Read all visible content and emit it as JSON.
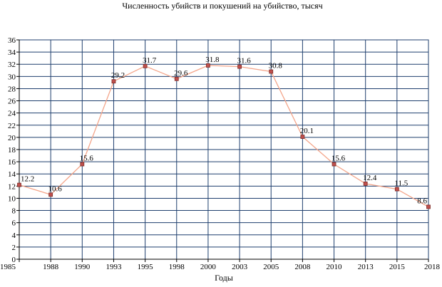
{
  "chart_data": {
    "type": "line",
    "title": "Численность убийств и покушений на убийство, тысяч",
    "xlabel": "Годы",
    "ylabel": "",
    "categories": [
      "1985",
      "1988",
      "1990",
      "1993",
      "1995",
      "1998",
      "2000",
      "2003",
      "2005",
      "2008",
      "2010",
      "2013",
      "2015",
      "2018"
    ],
    "values": [
      12.2,
      10.6,
      15.6,
      29.2,
      31.7,
      29.6,
      31.8,
      31.6,
      30.8,
      20.1,
      15.6,
      12.4,
      11.5,
      8.6
    ],
    "data_labels": [
      "12.2",
      "10.6",
      "15.6",
      "29.2",
      "31.7",
      "29.6",
      "31.8",
      "31.6",
      "30.8",
      "20.1",
      "15.6",
      "12.4",
      "11.5",
      "8.6"
    ],
    "ylim": [
      0,
      36
    ],
    "y_ticks": [
      "0",
      "2",
      "4",
      "6",
      "8",
      "10",
      "12",
      "14",
      "16",
      "18",
      "20",
      "22",
      "24",
      "26",
      "28",
      "30",
      "32",
      "34",
      "36"
    ],
    "grid": true,
    "legend": "none",
    "colors": {
      "line": "#f4a58a",
      "marker_fill": "#c0504d",
      "marker_stroke": "#7f2c27",
      "grid": "#1f3f6e",
      "background": "#ffffff"
    }
  }
}
